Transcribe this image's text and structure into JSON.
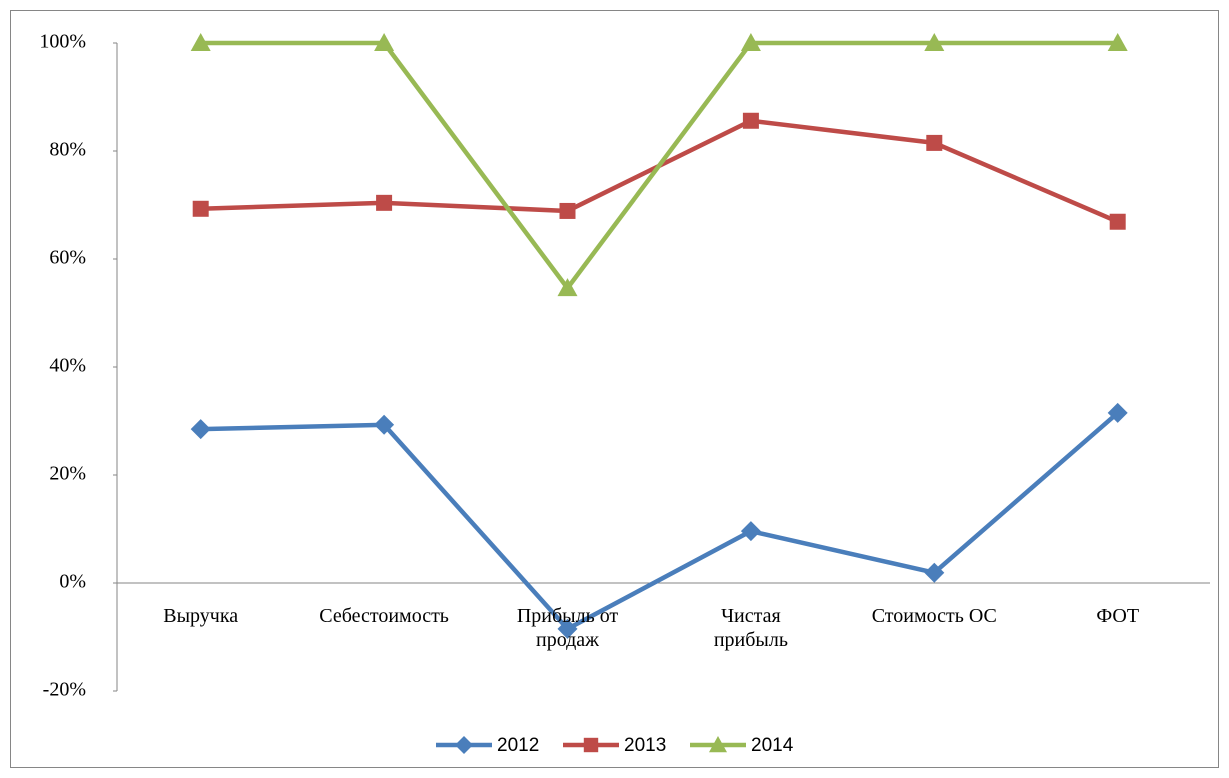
{
  "chart_data": {
    "type": "line",
    "categories": [
      "Выручка",
      "Себестоимость",
      "Прибыль от продаж",
      "Чистая прибыль",
      "Стоимость ОС",
      "ФОТ"
    ],
    "series": [
      {
        "name": "2012",
        "color": "#4a7ebb",
        "marker": "diamond",
        "values": [
          28.5,
          29.3,
          -8.5,
          9.6,
          1.9,
          31.5
        ]
      },
      {
        "name": "2013",
        "color": "#be4b48",
        "marker": "square",
        "values": [
          69.3,
          70.4,
          68.9,
          85.6,
          81.5,
          66.9
        ]
      },
      {
        "name": "2014",
        "color": "#98b954",
        "marker": "triangle",
        "values": [
          100,
          100,
          54.6,
          100,
          100,
          100
        ]
      }
    ],
    "ylim": [
      -20,
      100
    ],
    "yticks": [
      {
        "value": -20,
        "label": "-20%"
      },
      {
        "value": 0,
        "label": "0%"
      },
      {
        "value": 20,
        "label": "20%"
      },
      {
        "value": 40,
        "label": "40%"
      },
      {
        "value": 60,
        "label": "60%"
      },
      {
        "value": 80,
        "label": "80%"
      },
      {
        "value": 100,
        "label": "100%"
      }
    ],
    "grid": false,
    "legend": "bottom"
  }
}
